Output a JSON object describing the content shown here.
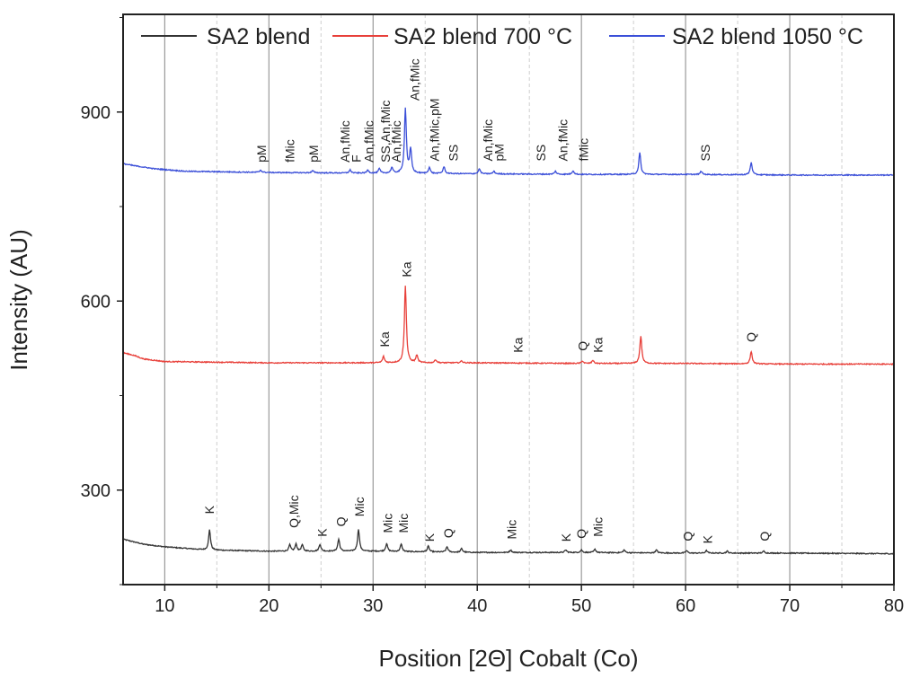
{
  "chart_data": {
    "type": "line",
    "title": "",
    "xlabel": "Position [2Θ] Cobalt (Co)",
    "ylabel": "Intensity (AU)",
    "xlim": [
      6,
      80
    ],
    "ylim": [
      150,
      1055
    ],
    "x_ticks": [
      10,
      20,
      30,
      40,
      50,
      60,
      70,
      80
    ],
    "y_ticks": [
      300,
      600,
      900
    ],
    "grid": "vertical lines at major x ticks (solid) and minor x ticks (dashed)",
    "legend_position": "top",
    "series": [
      {
        "name": "SA2 blend",
        "color": "#333333",
        "baseline": [
          [
            6,
            222
          ],
          [
            8,
            214
          ],
          [
            10,
            210
          ],
          [
            14,
            205
          ],
          [
            20,
            203
          ],
          [
            30,
            203
          ],
          [
            40,
            201
          ],
          [
            50,
            201
          ],
          [
            60,
            200
          ],
          [
            70,
            200
          ],
          [
            80,
            199
          ]
        ],
        "peaks": [
          [
            14.3,
            237
          ],
          [
            22.0,
            213
          ],
          [
            22.6,
            214
          ],
          [
            23.2,
            213
          ],
          [
            24.9,
            214
          ],
          [
            26.7,
            222
          ],
          [
            28.6,
            238
          ],
          [
            31.3,
            215
          ],
          [
            32.7,
            214
          ],
          [
            35.3,
            211
          ],
          [
            37.1,
            210
          ],
          [
            38.5,
            207
          ],
          [
            43.2,
            205
          ],
          [
            48.5,
            205
          ],
          [
            50.0,
            205
          ],
          [
            51.3,
            206
          ],
          [
            54.1,
            205
          ],
          [
            57.2,
            205
          ],
          [
            60.1,
            204
          ],
          [
            62.0,
            204
          ],
          [
            64.0,
            203
          ],
          [
            67.5,
            203
          ]
        ]
      },
      {
        "name": "SA2 blend 700 °C",
        "color": "#e8403a",
        "baseline": [
          [
            6,
            518
          ],
          [
            7,
            514
          ],
          [
            8,
            508
          ],
          [
            10,
            504
          ],
          [
            15,
            503
          ],
          [
            20,
            502
          ],
          [
            30,
            502
          ],
          [
            40,
            502
          ],
          [
            50,
            501
          ],
          [
            60,
            501
          ],
          [
            70,
            500
          ],
          [
            80,
            500
          ]
        ],
        "peaks": [
          [
            31.0,
            512
          ],
          [
            33.1,
            625
          ],
          [
            34.2,
            514
          ],
          [
            36.0,
            507
          ],
          [
            38.5,
            505
          ],
          [
            50.1,
            505
          ],
          [
            51.1,
            506
          ],
          [
            55.7,
            545
          ],
          [
            66.3,
            520
          ]
        ]
      },
      {
        "name": "SA2 blend 1050 °C",
        "color": "#3b4fd8",
        "baseline": [
          [
            6,
            818
          ],
          [
            7,
            815
          ],
          [
            9,
            810
          ],
          [
            12,
            806
          ],
          [
            20,
            804
          ],
          [
            30,
            803
          ],
          [
            40,
            802
          ],
          [
            50,
            801
          ],
          [
            60,
            801
          ],
          [
            70,
            800
          ],
          [
            80,
            800
          ]
        ],
        "peaks": [
          [
            19.2,
            808
          ],
          [
            24.2,
            807
          ],
          [
            27.8,
            808
          ],
          [
            29.5,
            808
          ],
          [
            30.6,
            810
          ],
          [
            31.8,
            812
          ],
          [
            33.1,
            905
          ],
          [
            33.6,
            840
          ],
          [
            35.4,
            812
          ],
          [
            36.8,
            813
          ],
          [
            40.2,
            810
          ],
          [
            41.6,
            806
          ],
          [
            47.5,
            806
          ],
          [
            49.2,
            807
          ],
          [
            55.6,
            835
          ],
          [
            61.5,
            806
          ],
          [
            66.3,
            820
          ]
        ]
      }
    ],
    "annotations": [
      {
        "series": 0,
        "text": "K",
        "x": 14.3,
        "y": 262
      },
      {
        "series": 0,
        "text": "Q,Mic",
        "x": 22.4,
        "y": 240
      },
      {
        "series": 0,
        "text": "K",
        "x": 25.1,
        "y": 226
      },
      {
        "series": 0,
        "text": "Q",
        "x": 26.9,
        "y": 242
      },
      {
        "series": 0,
        "text": "Mic",
        "x": 28.7,
        "y": 258
      },
      {
        "series": 0,
        "text": "Mic",
        "x": 31.4,
        "y": 232
      },
      {
        "series": 0,
        "text": "Mic",
        "x": 32.9,
        "y": 232
      },
      {
        "series": 0,
        "text": "K",
        "x": 35.4,
        "y": 218
      },
      {
        "series": 0,
        "text": "Q",
        "x": 37.2,
        "y": 224
      },
      {
        "series": 0,
        "text": "Mic",
        "x": 43.3,
        "y": 222
      },
      {
        "series": 0,
        "text": "K",
        "x": 48.5,
        "y": 218
      },
      {
        "series": 0,
        "text": "Q",
        "x": 50.0,
        "y": 223
      },
      {
        "series": 0,
        "text": "Mic",
        "x": 51.6,
        "y": 226
      },
      {
        "series": 0,
        "text": "Q",
        "x": 60.2,
        "y": 219
      },
      {
        "series": 0,
        "text": "K",
        "x": 62.1,
        "y": 215
      },
      {
        "series": 0,
        "text": "Q",
        "x": 67.6,
        "y": 219
      },
      {
        "series": 1,
        "text": "Ka",
        "x": 31.1,
        "y": 527
      },
      {
        "series": 1,
        "text": "Ka",
        "x": 33.2,
        "y": 638
      },
      {
        "series": 1,
        "text": "Ka",
        "x": 43.9,
        "y": 518
      },
      {
        "series": 1,
        "text": "Q",
        "x": 50.1,
        "y": 521
      },
      {
        "series": 1,
        "text": "Ka",
        "x": 51.6,
        "y": 518
      },
      {
        "series": 1,
        "text": "Q",
        "x": 66.3,
        "y": 535
      },
      {
        "series": 2,
        "text": "pM",
        "x": 19.3,
        "y": 820
      },
      {
        "series": 2,
        "text": "fMic",
        "x": 22.0,
        "y": 820
      },
      {
        "series": 2,
        "text": "pM",
        "x": 24.3,
        "y": 820
      },
      {
        "series": 2,
        "text": "An,fMic",
        "x": 27.3,
        "y": 820
      },
      {
        "series": 2,
        "text": "F",
        "x": 28.4,
        "y": 820
      },
      {
        "series": 2,
        "text": "An,fMic",
        "x": 29.6,
        "y": 820
      },
      {
        "series": 2,
        "text": "SS,An,fMic",
        "x": 31.2,
        "y": 820
      },
      {
        "series": 2,
        "text": "An,fMic",
        "x": 32.2,
        "y": 820
      },
      {
        "series": 2,
        "text": "An,fMic",
        "x": 34.0,
        "y": 918
      },
      {
        "series": 2,
        "text": "An,fMic,pM",
        "x": 35.9,
        "y": 822
      },
      {
        "series": 2,
        "text": "SS",
        "x": 37.7,
        "y": 822
      },
      {
        "series": 2,
        "text": "An,fMic",
        "x": 41.0,
        "y": 822
      },
      {
        "series": 2,
        "text": "pM",
        "x": 42.1,
        "y": 822
      },
      {
        "series": 2,
        "text": "SS",
        "x": 46.1,
        "y": 822
      },
      {
        "series": 2,
        "text": "An,fMic",
        "x": 48.2,
        "y": 822
      },
      {
        "series": 2,
        "text": "fMic",
        "x": 50.2,
        "y": 822
      },
      {
        "series": 2,
        "text": "SS",
        "x": 61.9,
        "y": 822
      }
    ]
  }
}
